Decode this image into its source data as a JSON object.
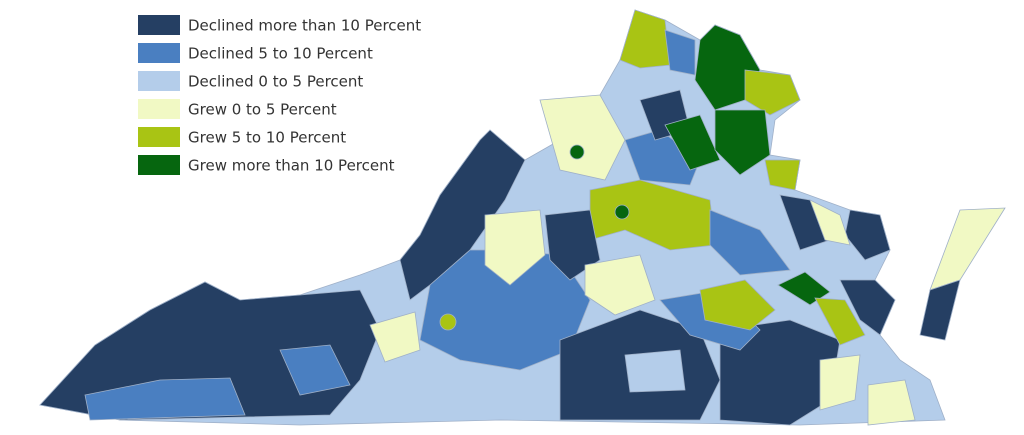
{
  "legend": {
    "items": [
      {
        "label": "Declined more than 10 Percent",
        "color": "#253f63"
      },
      {
        "label": "Declined 5 to 10 Percent",
        "color": "#4a7fc1"
      },
      {
        "label": "Declined 0 to 5 Percent",
        "color": "#b4cdea"
      },
      {
        "label": "Grew 0 to 5 Percent",
        "color": "#f1f9c4"
      },
      {
        "label": "Grew 5 to 10 Percent",
        "color": "#a9c414"
      },
      {
        "label": "Grew more than 10 Percent",
        "color": "#06660f"
      }
    ]
  }
}
